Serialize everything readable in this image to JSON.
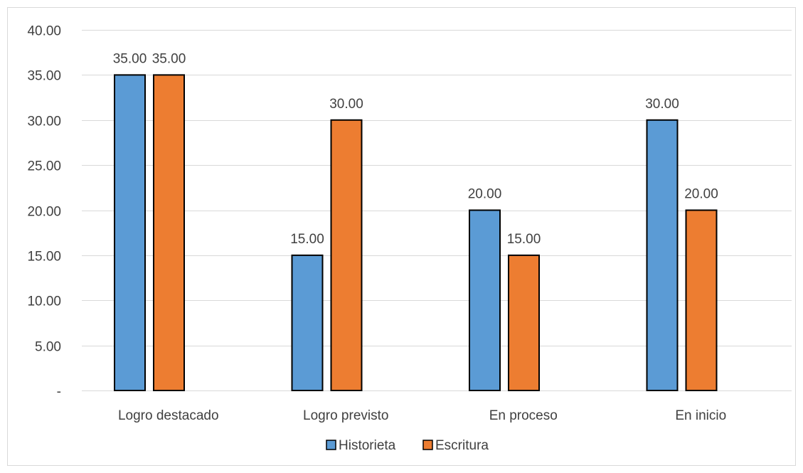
{
  "chart_data": {
    "type": "bar",
    "categories": [
      "Logro destacado",
      "Logro previsto",
      "En proceso",
      "En inicio"
    ],
    "series": [
      {
        "name": "Historieta",
        "color": "#5b9bd5",
        "values": [
          35,
          15,
          20,
          30
        ],
        "labels": [
          "35.00",
          "15.00",
          "20.00",
          "30.00"
        ]
      },
      {
        "name": "Escritura",
        "color": "#ed7d31",
        "values": [
          35,
          30,
          15,
          20
        ],
        "labels": [
          "35.00",
          "30.00",
          "15.00",
          "20.00"
        ]
      }
    ],
    "ylim": [
      0,
      40
    ],
    "yticks": [
      0,
      5,
      10,
      15,
      20,
      25,
      30,
      35,
      40
    ],
    "ytick_labels": [
      "-",
      "5.00",
      "10.00",
      "15.00",
      "20.00",
      "25.00",
      "30.00",
      "35.00",
      "40.00"
    ],
    "grid": true,
    "legend_position": "bottom"
  }
}
